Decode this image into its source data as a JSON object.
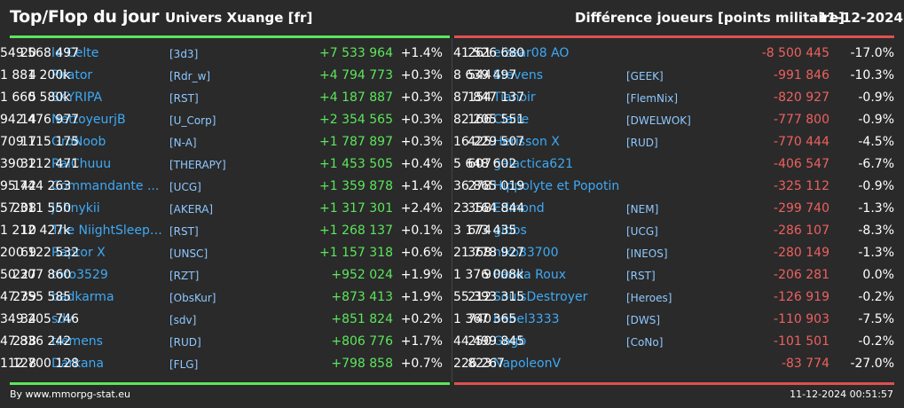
{
  "header": {
    "title": "Top/Flop du jour",
    "server": "Univers Xuange [fr]",
    "metric": "Différence joueurs [points militaire]",
    "date": "11-12-2024"
  },
  "colors": {
    "top_accent": "#5ce65c",
    "flop_accent": "#e05050",
    "name_link": "#3fa9f5"
  },
  "top": [
    {
      "rank": "20",
      "name": "le Celte",
      "clan": "[3d3]",
      "points": "549 568 497",
      "diff": "+7 533 964",
      "pct": "+1.4%"
    },
    {
      "rank": "4",
      "name": "Pirator",
      "clan": "[Rdr_w]",
      "points": "1 881 200k",
      "diff": "+4 794 773",
      "pct": "+0.3%"
    },
    {
      "rank": "5",
      "name": "SKYRIPA",
      "clan": "[RST]",
      "points": "1 660 580k",
      "diff": "+4 187 887",
      "pct": "+0.3%"
    },
    {
      "rank": "14",
      "name": "NettoyeurjB",
      "clan": "[U_Corp]",
      "points": "942 476 977",
      "diff": "+2 354 565",
      "pct": "+0.3%"
    },
    {
      "rank": "17",
      "name": "GroNoob",
      "clan": "[N-A]",
      "points": "709 115 175",
      "diff": "+1 787 897",
      "pct": "+0.3%"
    },
    {
      "rank": "32",
      "name": "RaiChuuu",
      "clan": "[THERAPY]",
      "points": "390 112 471",
      "diff": "+1 453 505",
      "pct": "+0.4%"
    },
    {
      "rank": "142",
      "name": "Commandante ...",
      "clan": "[UCG]",
      "points": "95 744 263",
      "diff": "+1 359 878",
      "pct": "+1.4%"
    },
    {
      "rank": "208",
      "name": "Johnykii",
      "clan": "[AKERA]",
      "points": "57 311 550",
      "diff": "+1 317 301",
      "pct": "+2.4%"
    },
    {
      "rank": "10",
      "name": "The NiightSleepe...",
      "clan": "[RST]",
      "points": "1 212 427k",
      "diff": "+1 268 137",
      "pct": "+0.1%"
    },
    {
      "rank": "69",
      "name": "Raptor X",
      "clan": "[UNSC]",
      "points": "200 122 532",
      "diff": "+1 157 318",
      "pct": "+0.6%"
    },
    {
      "rank": "227",
      "name": "toto3529",
      "clan": "[RZT]",
      "points": "50 307 860",
      "diff": "+952 024",
      "pct": "+1.9%"
    },
    {
      "rank": "239",
      "name": "badkarma",
      "clan": "[ObsKur]",
      "points": "47 755 585",
      "diff": "+873 413",
      "pct": "+1.9%"
    },
    {
      "rank": "34",
      "name": "sdv",
      "clan": "[sdv]",
      "points": "349 205 746",
      "diff": "+851 824",
      "pct": "+0.2%"
    },
    {
      "rank": "238",
      "name": "tremens",
      "clan": "[RUD]",
      "points": "47 836 242",
      "diff": "+806 776",
      "pct": "+1.7%"
    },
    {
      "rank": "128",
      "name": "Darkana",
      "clan": "[FLG]",
      "points": "112 700 128",
      "diff": "+798 858",
      "pct": "+0.7%"
    }
  ],
  "flop": [
    {
      "rank": "261",
      "name": "elzear08 AO",
      "clan": "",
      "points": "41 526 680",
      "diff": "-8 500 445",
      "pct": "-17.0%"
    },
    {
      "rank": "544",
      "name": "Stevens",
      "clan": "[GEEK]",
      "points": "8 639 497",
      "diff": "-991 846",
      "pct": "-10.3%"
    },
    {
      "rank": "154",
      "name": "Tianoir",
      "clan": "[FlemNix]",
      "points": "87 847 137",
      "diff": "-820 927",
      "pct": "-0.9%"
    },
    {
      "rank": "166",
      "name": "Claire",
      "clan": "[DWELWOK]",
      "points": "82 205 551",
      "diff": "-777 800",
      "pct": "-0.9%"
    },
    {
      "rank": "425",
      "name": "Herisson X",
      "clan": "[RUD]",
      "points": "16 229 507",
      "diff": "-770 444",
      "pct": "-4.5%"
    },
    {
      "rank": "607",
      "name": "galactica621",
      "clan": "",
      "points": "5 648 602",
      "diff": "-406 547",
      "pct": "-6.7%"
    },
    {
      "rank": "278",
      "name": "Hippolyte et Popotin",
      "clan": "",
      "points": "36 865 019",
      "diff": "-325 112",
      "pct": "-0.9%"
    },
    {
      "rank": "358",
      "name": "Edmond",
      "clan": "[NEM]",
      "points": "23 164 844",
      "diff": "-299 740",
      "pct": "-1.3%"
    },
    {
      "rank": "674",
      "name": "gibbs",
      "clan": "[UCG]",
      "points": "3 173 435",
      "diff": "-286 107",
      "pct": "-8.3%"
    },
    {
      "rank": "368",
      "name": "niko83700",
      "clan": "[INEOS]",
      "points": "21 778 927",
      "diff": "-280 149",
      "pct": "-1.3%"
    },
    {
      "rank": "9",
      "name": "Panda Roux",
      "clan": "[RST]",
      "points": "1 376 008k",
      "diff": "-206 281",
      "pct": "0.0%"
    },
    {
      "rank": "212",
      "name": "SoulsDestroyer",
      "clan": "[Heroes]",
      "points": "55 393 315",
      "diff": "-126 919",
      "pct": "-0.2%"
    },
    {
      "rank": "740",
      "name": "bebel3333",
      "clan": "[DWS]",
      "points": "1 367 365",
      "diff": "-110 903",
      "pct": "-7.5%"
    },
    {
      "rank": "250",
      "name": "Gagb",
      "clan": "[CoNo]",
      "points": "44 499 845",
      "diff": "-101 501",
      "pct": "-0.2%"
    },
    {
      "rank": "823",
      "name": "NapoleonV",
      "clan": "",
      "points": "226 267",
      "diff": "-83 774",
      "pct": "-27.0%"
    }
  ],
  "footer": {
    "source": "By www.mmorpg-stat.eu",
    "timestamp": "11-12-2024 00:51:57"
  }
}
